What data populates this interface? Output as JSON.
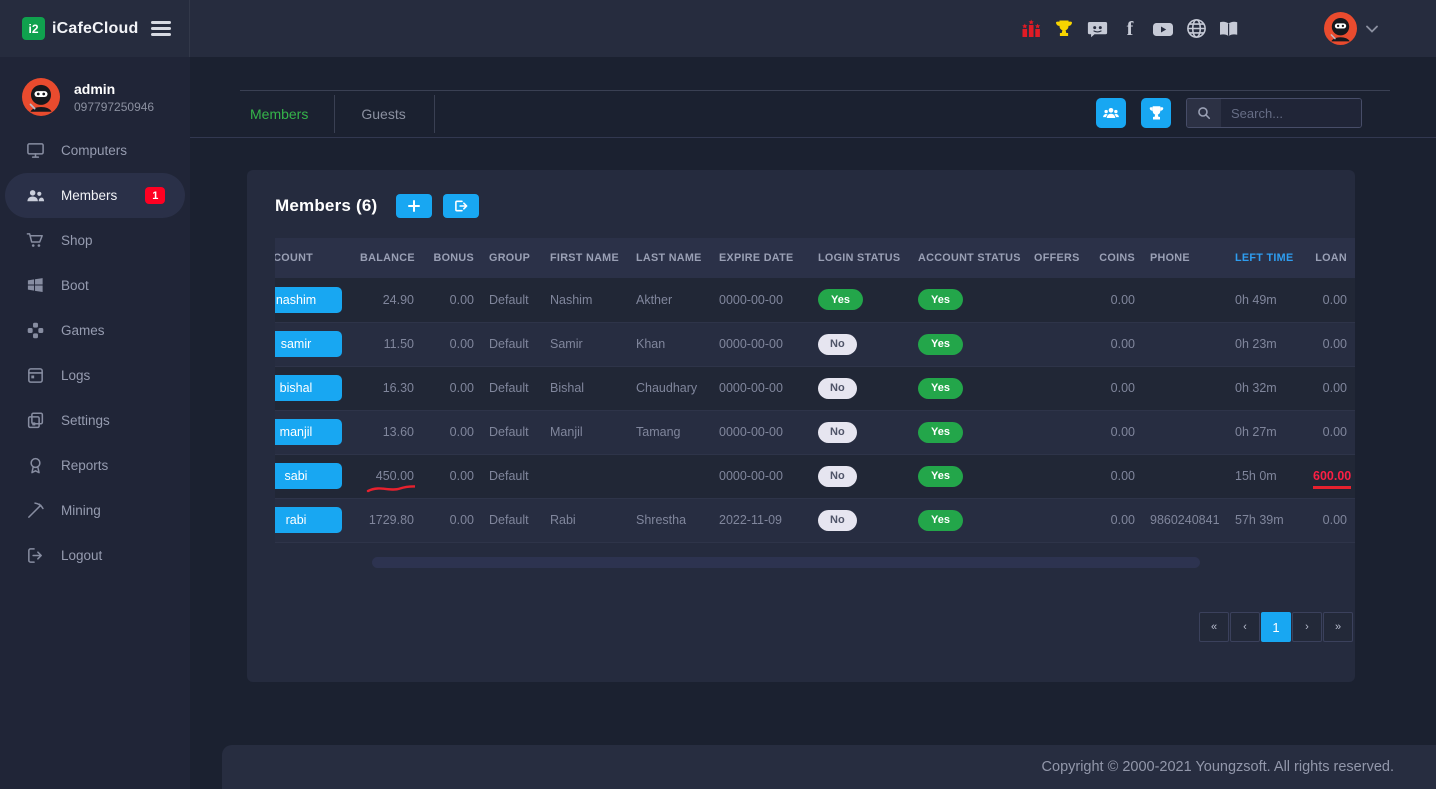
{
  "brand": {
    "name": "iCafeCloud",
    "logo_glyph": "i2"
  },
  "topbar": {
    "icons": [
      "ranking",
      "trophy",
      "discord",
      "facebook",
      "youtube",
      "globe",
      "handbook"
    ],
    "accent_colors": {
      "ranking": "#e11b25",
      "trophy": "#f8d400",
      "social": "#c6cad6"
    }
  },
  "sidebar": {
    "user": {
      "name": "admin",
      "phone": "097797250946"
    },
    "items": [
      {
        "label": "Computers",
        "icon": "computers",
        "active": false
      },
      {
        "label": "Members",
        "icon": "members",
        "active": true,
        "badge": "1"
      },
      {
        "label": "Shop",
        "icon": "shop",
        "active": false
      },
      {
        "label": "Boot",
        "icon": "boot",
        "active": false
      },
      {
        "label": "Games",
        "icon": "games",
        "active": false
      },
      {
        "label": "Logs",
        "icon": "logs",
        "active": false
      },
      {
        "label": "Settings",
        "icon": "settings",
        "active": false
      },
      {
        "label": "Reports",
        "icon": "reports",
        "active": false
      },
      {
        "label": "Mining",
        "icon": "mining",
        "active": false
      },
      {
        "label": "Logout",
        "icon": "logout",
        "active": false
      }
    ]
  },
  "tabs": [
    {
      "label": "Members",
      "active": true
    },
    {
      "label": "Guests",
      "active": false
    }
  ],
  "toolbar": {
    "search_placeholder": "Search..."
  },
  "members_panel": {
    "title": "Members",
    "count": "(6)",
    "sorted_column": "LEFT TIME",
    "columns": [
      {
        "label": "ACCOUNT"
      },
      {
        "label": "BALANCE"
      },
      {
        "label": "BONUS"
      },
      {
        "label": "GROUP"
      },
      {
        "label": "FIRST NAME"
      },
      {
        "label": "LAST NAME"
      },
      {
        "label": "EXPIRE DATE"
      },
      {
        "label": "LOGIN STATUS"
      },
      {
        "label": "ACCOUNT STATUS"
      },
      {
        "label": "OFFERS"
      },
      {
        "label": "COINS"
      },
      {
        "label": "PHONE"
      },
      {
        "label": "LEFT TIME",
        "accent": true
      },
      {
        "label": "LOAN"
      }
    ],
    "rows": [
      {
        "account": "nashim",
        "balance": "24.90",
        "bonus": "0.00",
        "group": "Default",
        "first_name": "Nashim",
        "last_name": "Akther",
        "expire_date": "0000-00-00",
        "login_status": "Yes",
        "account_status": "Yes",
        "offers": "",
        "coins": "0.00",
        "phone": "",
        "left_time": "0h 49m",
        "loan": "0.00"
      },
      {
        "account": "samir",
        "balance": "11.50",
        "bonus": "0.00",
        "group": "Default",
        "first_name": "Samir",
        "last_name": "Khan",
        "expire_date": "0000-00-00",
        "login_status": "No",
        "account_status": "Yes",
        "offers": "",
        "coins": "0.00",
        "phone": "",
        "left_time": "0h 23m",
        "loan": "0.00"
      },
      {
        "account": "bishal",
        "balance": "16.30",
        "bonus": "0.00",
        "group": "Default",
        "first_name": "Bishal",
        "last_name": "Chaudhary",
        "expire_date": "0000-00-00",
        "login_status": "No",
        "account_status": "Yes",
        "offers": "",
        "coins": "0.00",
        "phone": "",
        "left_time": "0h 32m",
        "loan": "0.00"
      },
      {
        "account": "manjil",
        "balance": "13.60",
        "bonus": "0.00",
        "group": "Default",
        "first_name": "Manjil",
        "last_name": "Tamang",
        "expire_date": "0000-00-00",
        "login_status": "No",
        "account_status": "Yes",
        "offers": "",
        "coins": "0.00",
        "phone": "",
        "left_time": "0h 27m",
        "loan": "0.00"
      },
      {
        "account": "sabi",
        "balance": "450.00",
        "balance_marked": true,
        "bonus": "0.00",
        "group": "Default",
        "first_name": "",
        "last_name": "",
        "expire_date": "0000-00-00",
        "login_status": "No",
        "account_status": "Yes",
        "offers": "",
        "coins": "0.00",
        "phone": "",
        "left_time": "15h 0m",
        "loan": "600.00",
        "loan_marked": true
      },
      {
        "account": "rabi",
        "balance": "1729.80",
        "bonus": "0.00",
        "group": "Default",
        "first_name": "Rabi",
        "last_name": "Shrestha",
        "expire_date": "2022-11-09",
        "login_status": "No",
        "account_status": "Yes",
        "offers": "",
        "coins": "0.00",
        "phone": "9860240841",
        "left_time": "57h 39m",
        "loan": "0.00"
      }
    ]
  },
  "pagination": {
    "items": [
      "«",
      "‹",
      "1",
      "›",
      "»"
    ],
    "active": "1"
  },
  "footer": {
    "copyright": "Copyright © 2000-2021 Youngzsoft. All rights reserved."
  },
  "colors": {
    "accent_blue": "#18a7f2",
    "green": "#23a64a",
    "tab_green": "#35b44a",
    "alert_red": "#fb1f44",
    "badge_red": "#ff0022"
  }
}
